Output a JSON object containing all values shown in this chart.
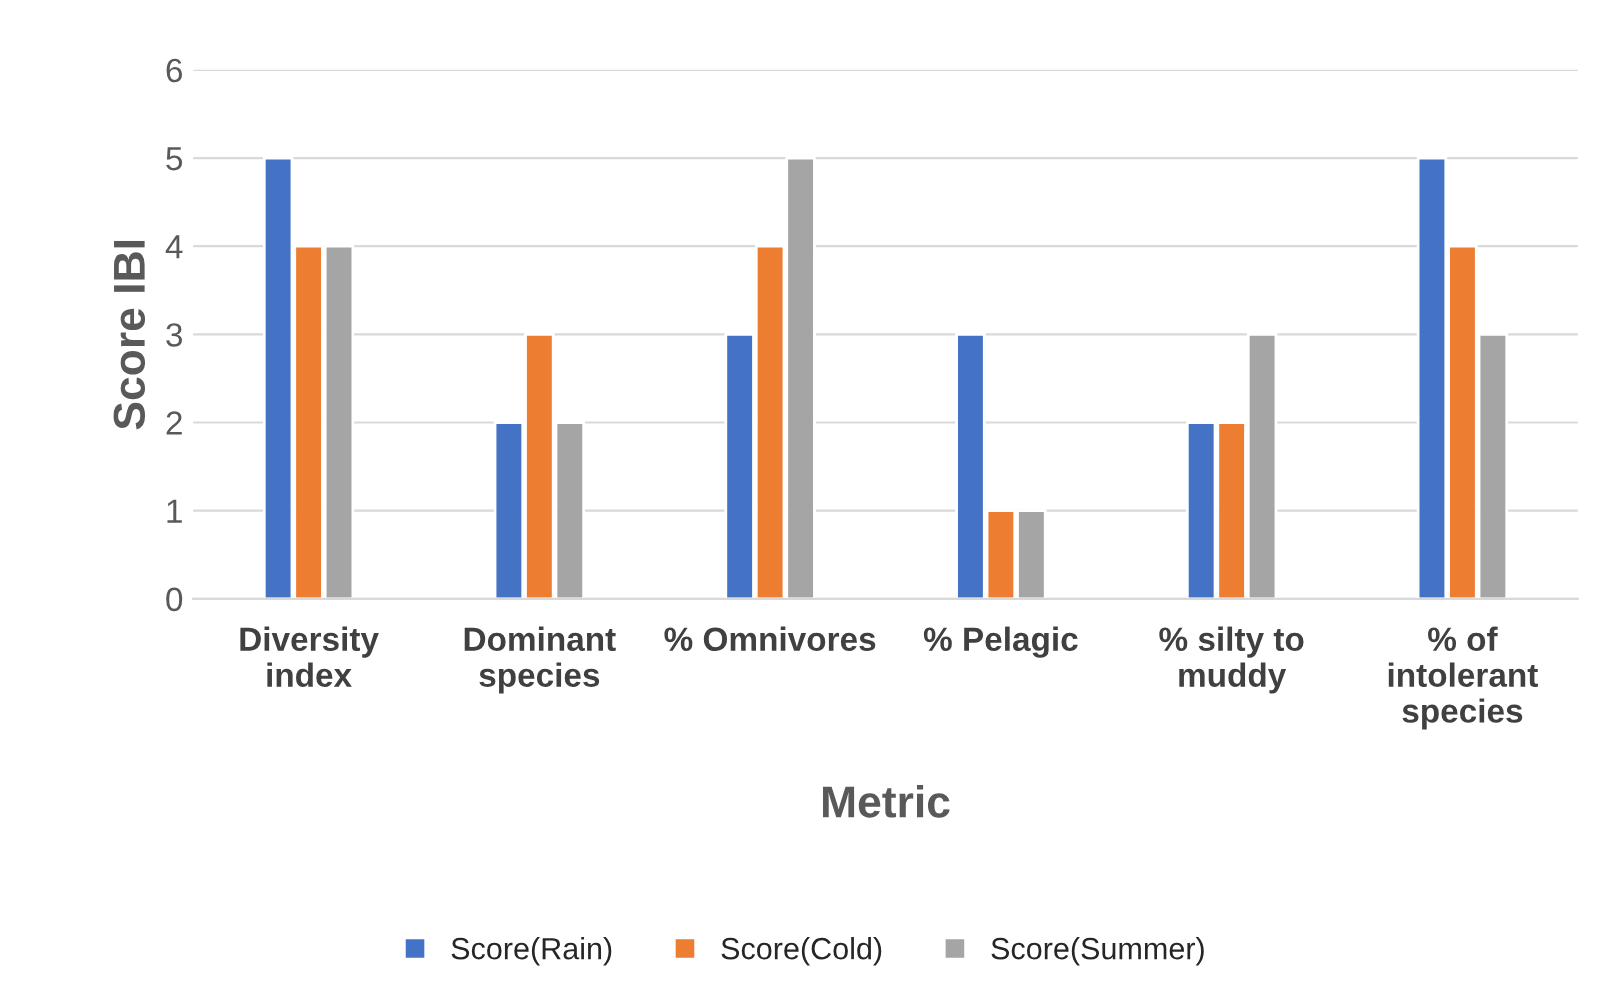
{
  "chart_data": {
    "type": "bar",
    "categories": [
      "Diversity\nindex",
      "Dominant\nspecies",
      "% Omnivores",
      "% Pelagic",
      "% silty to\nmuddy",
      "% of\nintolerant\nspecies"
    ],
    "series": [
      {
        "name": "Score(Rain)",
        "color": "#4472c4",
        "values": [
          5,
          2,
          3,
          3,
          2,
          5
        ]
      },
      {
        "name": "Score(Cold)",
        "color": "#ed7d31",
        "values": [
          4,
          3,
          4,
          1,
          2,
          4
        ]
      },
      {
        "name": "Score(Summer)",
        "color": "#a5a5a5",
        "values": [
          4,
          2,
          5,
          1,
          3,
          3
        ]
      }
    ],
    "xlabel": "Metric",
    "ylabel": "Score IBI",
    "ylim": [
      0,
      6
    ],
    "yticks": [
      0,
      1,
      2,
      3,
      4,
      5,
      6
    ],
    "grid": "y",
    "legend": "bottom"
  }
}
